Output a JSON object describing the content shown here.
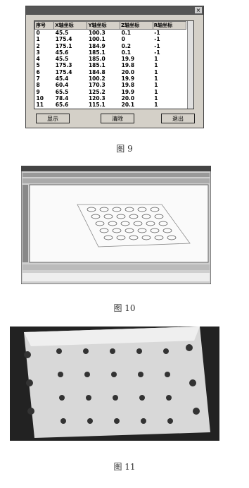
{
  "dialog": {
    "table": {
      "headers": [
        "序号",
        "X轴坐标",
        "Y轴坐标",
        "Z轴坐标",
        "R轴坐标"
      ],
      "rows": [
        [
          "0",
          "45.5",
          "100.3",
          "0.1",
          "-1"
        ],
        [
          "1",
          "175.4",
          "100.1",
          "0",
          "-1"
        ],
        [
          "2",
          "175.1",
          "184.9",
          "0.2",
          "-1"
        ],
        [
          "3",
          "45.6",
          "185.1",
          "0.1",
          "-1"
        ],
        [
          "4",
          "45.5",
          "185.0",
          "19.9",
          "1"
        ],
        [
          "5",
          "175.3",
          "185.1",
          "19.8",
          "1"
        ],
        [
          "6",
          "175.4",
          "184.8",
          "20.0",
          "1"
        ],
        [
          "7",
          "45.4",
          "100.2",
          "19.9",
          "1"
        ],
        [
          "8",
          "60.4",
          "170.3",
          "19.8",
          "1"
        ],
        [
          "9",
          "65.5",
          "125.2",
          "19.9",
          "1"
        ],
        [
          "10",
          "78.4",
          "120.3",
          "20.0",
          "1"
        ],
        [
          "11",
          "65.6",
          "115.1",
          "20.1",
          "1"
        ]
      ]
    },
    "buttons": [
      "显示",
      "清除",
      "退出"
    ]
  },
  "figures": [
    {
      "caption": "图 9"
    },
    {
      "caption": "图 10"
    },
    {
      "caption": "图 11"
    }
  ]
}
